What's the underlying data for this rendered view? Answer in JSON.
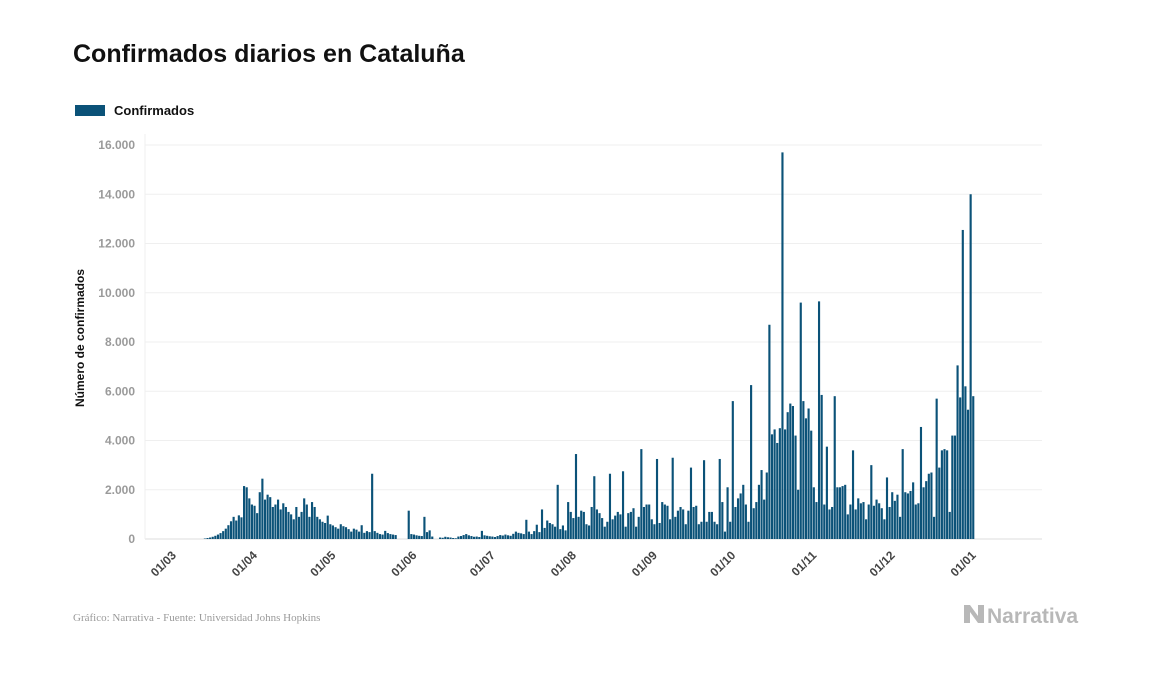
{
  "title": "Confirmados diarios en Cataluña",
  "legend": {
    "label": "Confirmados",
    "color": "#0b5278"
  },
  "source": "Gráfico: Narrativa - Fuente: Universidad Johns Hopkins",
  "brand": {
    "name": "Narrativa",
    "icon": "narrativa-logo-icon"
  },
  "chart_data": {
    "type": "bar",
    "ylabel": "Número de confirmados",
    "ylim": [
      0,
      16000
    ],
    "yticks": [
      {
        "value": 0,
        "label": "0"
      },
      {
        "value": 2000,
        "label": "2.000"
      },
      {
        "value": 4000,
        "label": "4.000"
      },
      {
        "value": 6000,
        "label": "6.000"
      },
      {
        "value": 8000,
        "label": "8.000"
      },
      {
        "value": 10000,
        "label": "10.000"
      },
      {
        "value": 12000,
        "label": "12.000"
      },
      {
        "value": 14000,
        "label": "14.000"
      },
      {
        "value": 16000,
        "label": "16.000"
      }
    ],
    "xticks": [
      "01/03",
      "01/04",
      "01/05",
      "01/06",
      "01/07",
      "01/08",
      "01/09",
      "01/10",
      "01/11",
      "01/12",
      "01/01"
    ],
    "x_start": "2020-02-22",
    "x_end": "2021-01-13",
    "grid": true,
    "legend_position": "top-left",
    "series": [
      {
        "name": "Confirmados",
        "color": "#0b5278",
        "values": [
          0,
          0,
          0,
          0,
          0,
          0,
          0,
          0,
          0,
          0,
          0,
          0,
          0,
          0,
          0,
          0,
          0,
          0,
          0,
          0,
          0,
          20,
          40,
          60,
          90,
          130,
          180,
          240,
          320,
          420,
          560,
          720,
          900,
          750,
          960,
          880,
          2150,
          2100,
          1650,
          1400,
          1350,
          1050,
          1900,
          2450,
          1600,
          1800,
          1700,
          1300,
          1400,
          1600,
          1200,
          1450,
          1300,
          1100,
          1000,
          800,
          1300,
          900,
          1100,
          1650,
          1400,
          900,
          1500,
          1300,
          900,
          800,
          700,
          650,
          950,
          600,
          550,
          480,
          420,
          600,
          520,
          480,
          400,
          300,
          420,
          380,
          300,
          560,
          250,
          320,
          280,
          2650,
          320,
          250,
          200,
          180,
          330,
          240,
          200,
          180,
          160,
          0,
          0,
          0,
          0,
          1150,
          200,
          180,
          150,
          130,
          120,
          900,
          280,
          350,
          100,
          0,
          0,
          60,
          50,
          90,
          70,
          60,
          40,
          30,
          100,
          120,
          160,
          200,
          150,
          120,
          90,
          100,
          80,
          330,
          150,
          130,
          110,
          100,
          80,
          120,
          160,
          140,
          180,
          150,
          130,
          210,
          300,
          250,
          230,
          200,
          780,
          300,
          200,
          320,
          580,
          280,
          1200,
          450,
          750,
          650,
          600,
          500,
          2200,
          400,
          550,
          350,
          1500,
          1100,
          850,
          3450,
          900,
          1150,
          1100,
          600,
          550,
          1300,
          2550,
          1200,
          1050,
          850,
          500,
          700,
          2650,
          800,
          950,
          1100,
          1000,
          2750,
          500,
          1050,
          1100,
          1250,
          500,
          900,
          3650,
          1300,
          1400,
          1400,
          800,
          600,
          3250,
          650,
          1500,
          1400,
          1350,
          800,
          3300,
          900,
          1150,
          1300,
          1200,
          600,
          1150,
          2900,
          1300,
          1350,
          600,
          700,
          3200,
          700,
          1100,
          1100,
          700,
          600,
          3250,
          1500,
          300,
          2100,
          700,
          5600,
          1300,
          1650,
          1850,
          2200,
          1400,
          700,
          6250,
          1250,
          1500,
          2200,
          2800,
          1600,
          2700,
          8700,
          4250,
          4450,
          3900,
          4500,
          15700,
          4450,
          5150,
          5500,
          5400,
          4200,
          2000,
          9600,
          5600,
          4900,
          5300,
          4400,
          2100,
          1500,
          9650,
          5850,
          1400,
          3750,
          1200,
          1300,
          5800,
          2100,
          2100,
          2150,
          2200,
          1000,
          1400,
          3600,
          1200,
          1650,
          1450,
          1500,
          800,
          1400,
          3000,
          1350,
          1600,
          1450,
          1250,
          800,
          2500,
          1300,
          1900,
          1550,
          1800,
          900,
          3650,
          1900,
          1850,
          1950,
          2300,
          1400,
          1450,
          4550,
          2100,
          2350,
          2650,
          2700,
          900,
          5700,
          2900,
          3600,
          3650,
          3600,
          1100,
          4200,
          4200,
          7050,
          5750,
          12550,
          6200,
          5250,
          14000,
          5800
        ]
      }
    ]
  }
}
